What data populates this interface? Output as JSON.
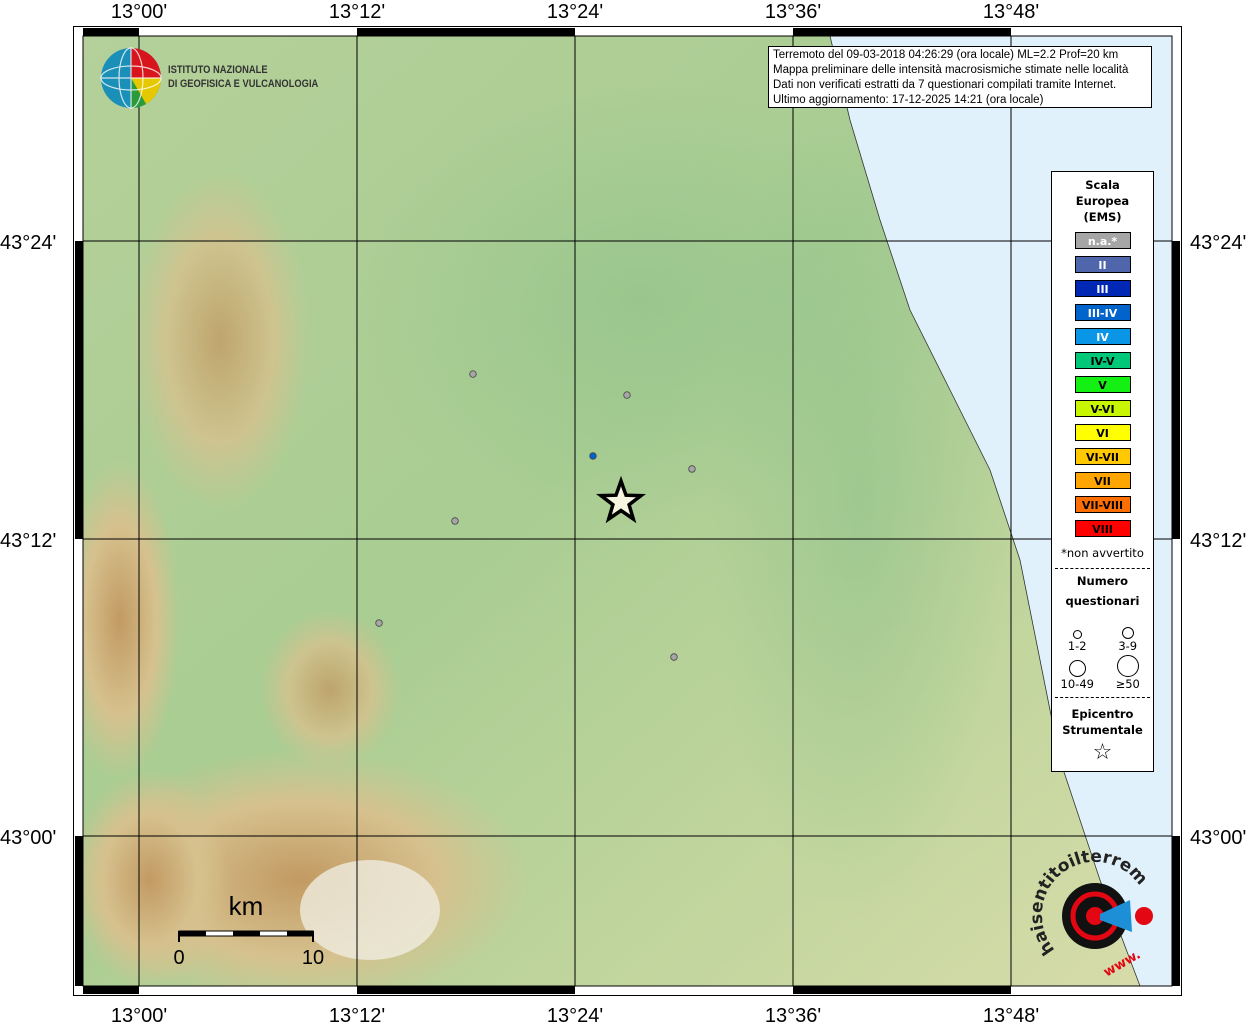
{
  "map": {
    "lon_ticks": [
      "13°00'",
      "13°12'",
      "13°24'",
      "13°36'",
      "13°48'"
    ],
    "lat_ticks": [
      "43°24'",
      "43°12'",
      "43°00'"
    ],
    "colors": {
      "land_low": "#9fc88f",
      "land_mid": "#c9d9a3",
      "mountain": "#c9a26a",
      "sea": "#e1f1fb"
    }
  },
  "logo": {
    "line1": "ISTITUTO NAZIONALE",
    "line2": "DI GEOFISICA E VULCANOLOGIA"
  },
  "info": {
    "line1": "Terremoto del 09-03-2018 04:26:29 (ora locale) ML=2.2 Prof=20 km",
    "line2": "Mappa preliminare delle intensità macrosismiche stimate nelle località",
    "line3": "Dati non verificati estratti da 7 questionari compilati tramite Internet.",
    "line4": "Ultimo aggiornamento: 17-12-2025 14:21 (ora locale)"
  },
  "legend": {
    "title1": "Scala",
    "title2": "Europea",
    "title3": "(EMS)",
    "items": [
      {
        "label": "n.a.*",
        "color": "#a6a6a6",
        "text": "#ffffff"
      },
      {
        "label": "II",
        "color": "#4f66ad",
        "text": "#ffffff"
      },
      {
        "label": "III",
        "color": "#0028b4",
        "text": "#ffffff"
      },
      {
        "label": "III-IV",
        "color": "#0064cc",
        "text": "#ffffff"
      },
      {
        "label": "IV",
        "color": "#0a96e6",
        "text": "#ffffff"
      },
      {
        "label": "IV-V",
        "color": "#00c878",
        "text": "#000000"
      },
      {
        "label": "V",
        "color": "#14f014",
        "text": "#000000"
      },
      {
        "label": "V-VI",
        "color": "#c8f500",
        "text": "#000000"
      },
      {
        "label": "VI",
        "color": "#ffff00",
        "text": "#000000"
      },
      {
        "label": "VI-VII",
        "color": "#ffc800",
        "text": "#000000"
      },
      {
        "label": "VII",
        "color": "#ffa500",
        "text": "#000000"
      },
      {
        "label": "VII-VIII",
        "color": "#ff6e00",
        "text": "#000000"
      },
      {
        "label": "VIII",
        "color": "#ff0000",
        "text": "#000000"
      }
    ],
    "note": "*non avvertito",
    "q_title1": "Numero",
    "q_title2": "questionari",
    "q_sizes": [
      "1-2",
      "3-9",
      "10-49",
      "≥50"
    ],
    "epi_title1": "Epicentro",
    "epi_title2": "Strumentale"
  },
  "scalebar": {
    "unit": "km",
    "min": "0",
    "max": "10"
  },
  "points": [
    {
      "lon": 13.3064,
      "lat": 43.3107,
      "intensity": "n.a.*"
    },
    {
      "lon": 13.4477,
      "lat": 43.2966,
      "intensity": "n.a.*"
    },
    {
      "lon": 13.4165,
      "lat": 43.2557,
      "intensity": "III-IV"
    },
    {
      "lon": 13.5073,
      "lat": 43.247,
      "intensity": "n.a.*"
    },
    {
      "lon": 13.2899,
      "lat": 43.2121,
      "intensity": "n.a.*"
    },
    {
      "lon": 13.2202,
      "lat": 43.1436,
      "intensity": "n.a.*"
    },
    {
      "lon": 13.4908,
      "lat": 43.1208,
      "intensity": "n.a.*"
    }
  ],
  "epicenter": {
    "lon": 13.4422,
    "lat": 43.2248
  },
  "site_logo": {
    "text": "haisentitoilterremoto.it",
    "url_text": "www."
  }
}
